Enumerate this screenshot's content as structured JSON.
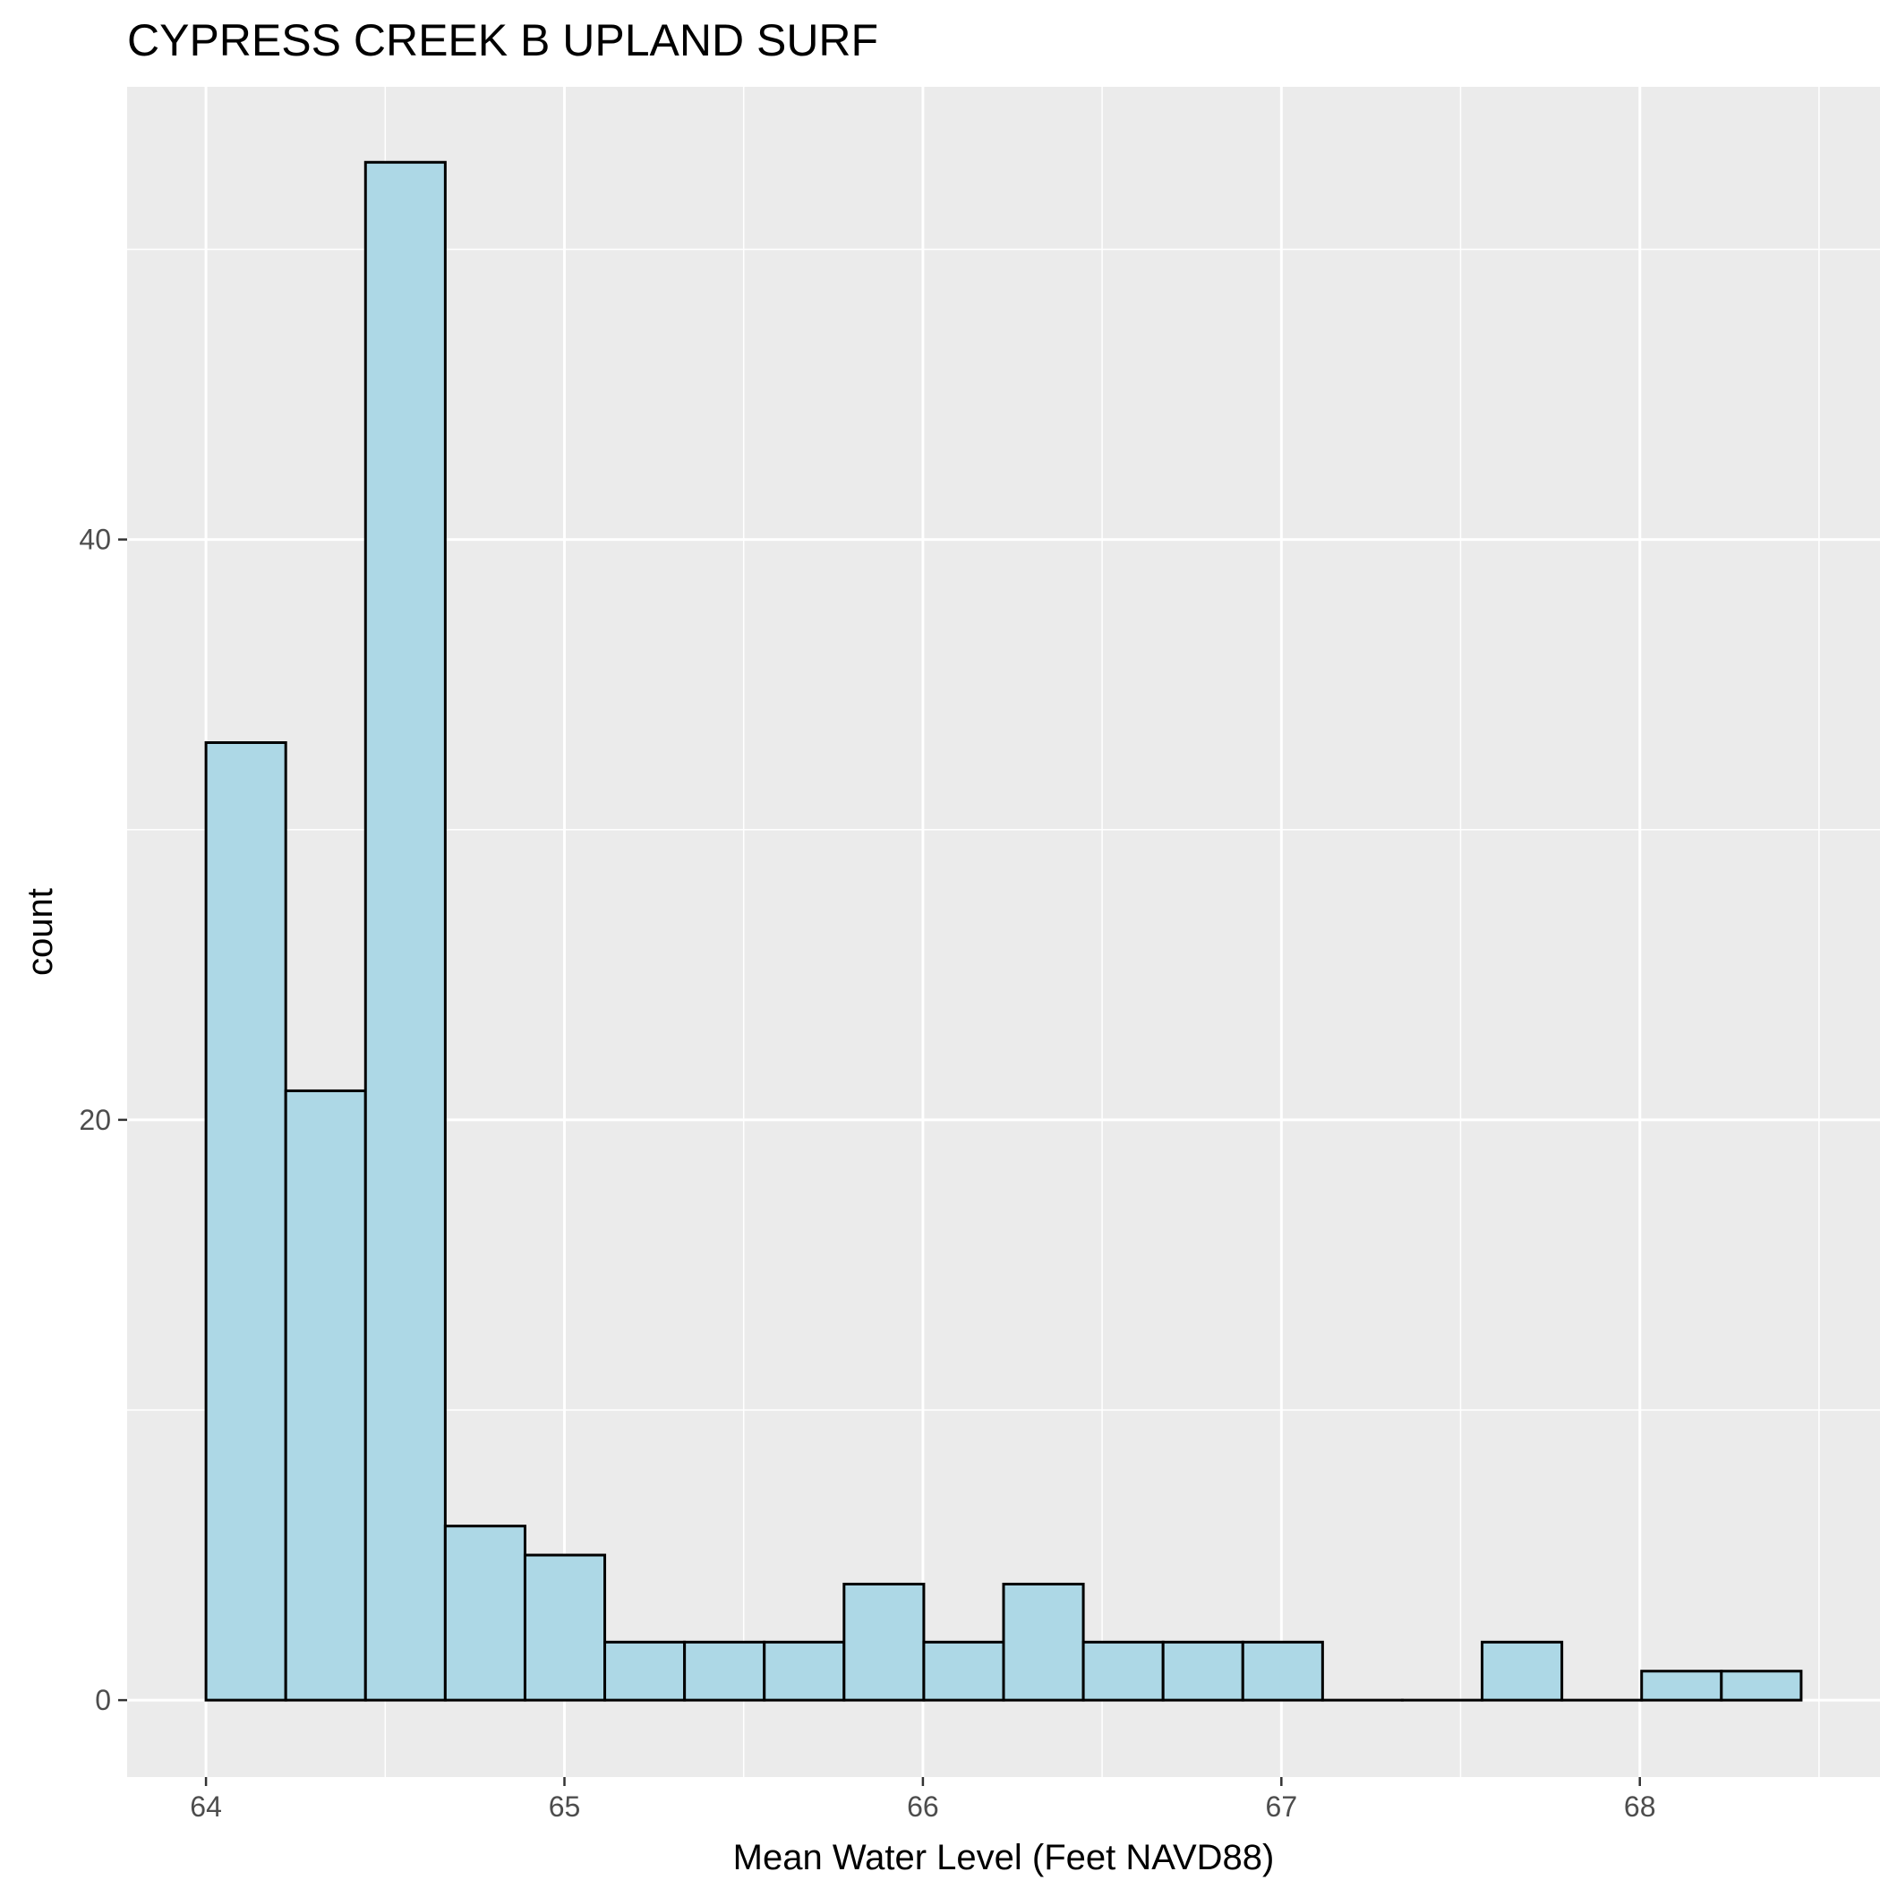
{
  "chart_data": {
    "type": "bar",
    "subtype": "histogram",
    "title": "CYPRESS CREEK B UPLAND SURF",
    "xlabel": "Mean Water Level (Feet NAVD88)",
    "ylabel": "count",
    "xlim": [
      63.78,
      68.67
    ],
    "ylim": [
      -2.65,
      55.6
    ],
    "x_ticks": [
      64,
      65,
      66,
      67,
      68
    ],
    "y_ticks": [
      0,
      20,
      40
    ],
    "bins": {
      "start": 64.0,
      "width": 0.2225,
      "values": [
        33,
        21,
        53,
        6,
        5,
        2,
        2,
        2,
        4,
        2,
        4,
        2,
        2,
        2,
        0,
        0,
        2,
        0,
        1,
        1
      ]
    },
    "style": {
      "bar_fill": "#add8e6",
      "bar_stroke": "#000000",
      "panel_bg": "#ebebeb",
      "grid_color": "#ffffff",
      "grid": true
    }
  }
}
